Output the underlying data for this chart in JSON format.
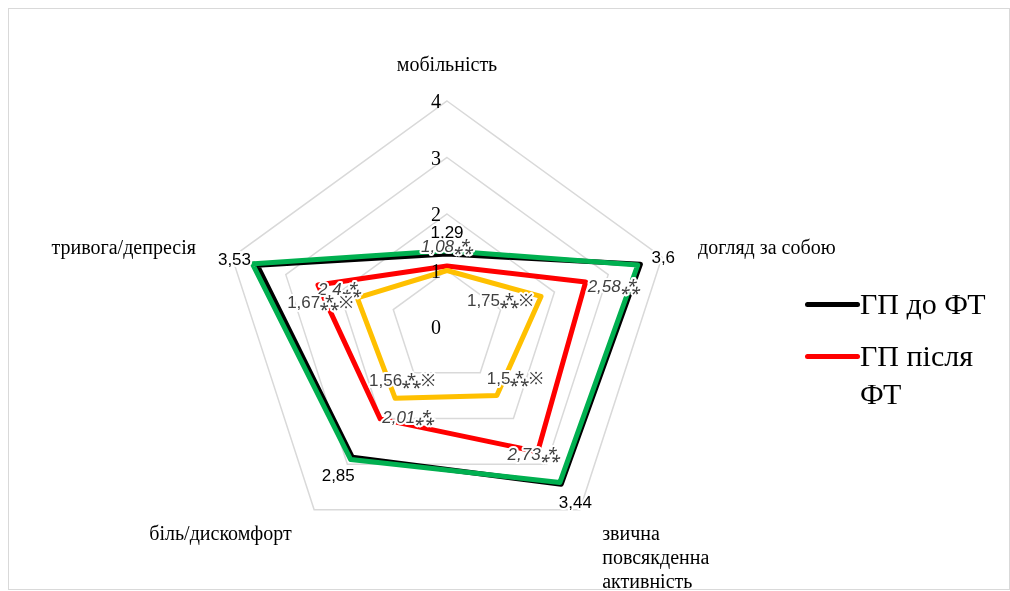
{
  "chart_data": {
    "type": "radar",
    "categories": [
      "мобільність",
      "догляд за собою",
      "звична повсякденна активність",
      "біль/дискомфорт",
      "тривога/депресія"
    ],
    "series": [
      {
        "name": "ГП до ФТ",
        "color": "#000000",
        "values": [
          1.29,
          3.6,
          3.44,
          2.85,
          3.53
        ],
        "value_labels": [
          "1,29",
          "3,6",
          "3,44",
          "2,85",
          "3,53"
        ]
      },
      {
        "color": "#00b050",
        "values": [
          1.35,
          3.55,
          3.4,
          2.9,
          3.62
        ]
      },
      {
        "name": "ГП після ФТ",
        "color": "#ff0000",
        "values": [
          1.08,
          2.58,
          2.73,
          2.01,
          2.4
        ],
        "value_labels": [
          "1,08⁂",
          "2,58⁂",
          "2,73⁂",
          "2,01⁂",
          "2,4⁂"
        ]
      },
      {
        "color": "#ffc000",
        "values": [
          1.0,
          1.75,
          1.5,
          1.56,
          1.67
        ],
        "value_labels": [
          null,
          "1,75⁂※",
          "1,5⁂※",
          "1,56⁂※",
          "1,67⁂※"
        ]
      }
    ],
    "ylim": [
      0,
      4
    ],
    "yticks": [
      0,
      1,
      2,
      3,
      4
    ],
    "grid": true,
    "legend": "right"
  }
}
